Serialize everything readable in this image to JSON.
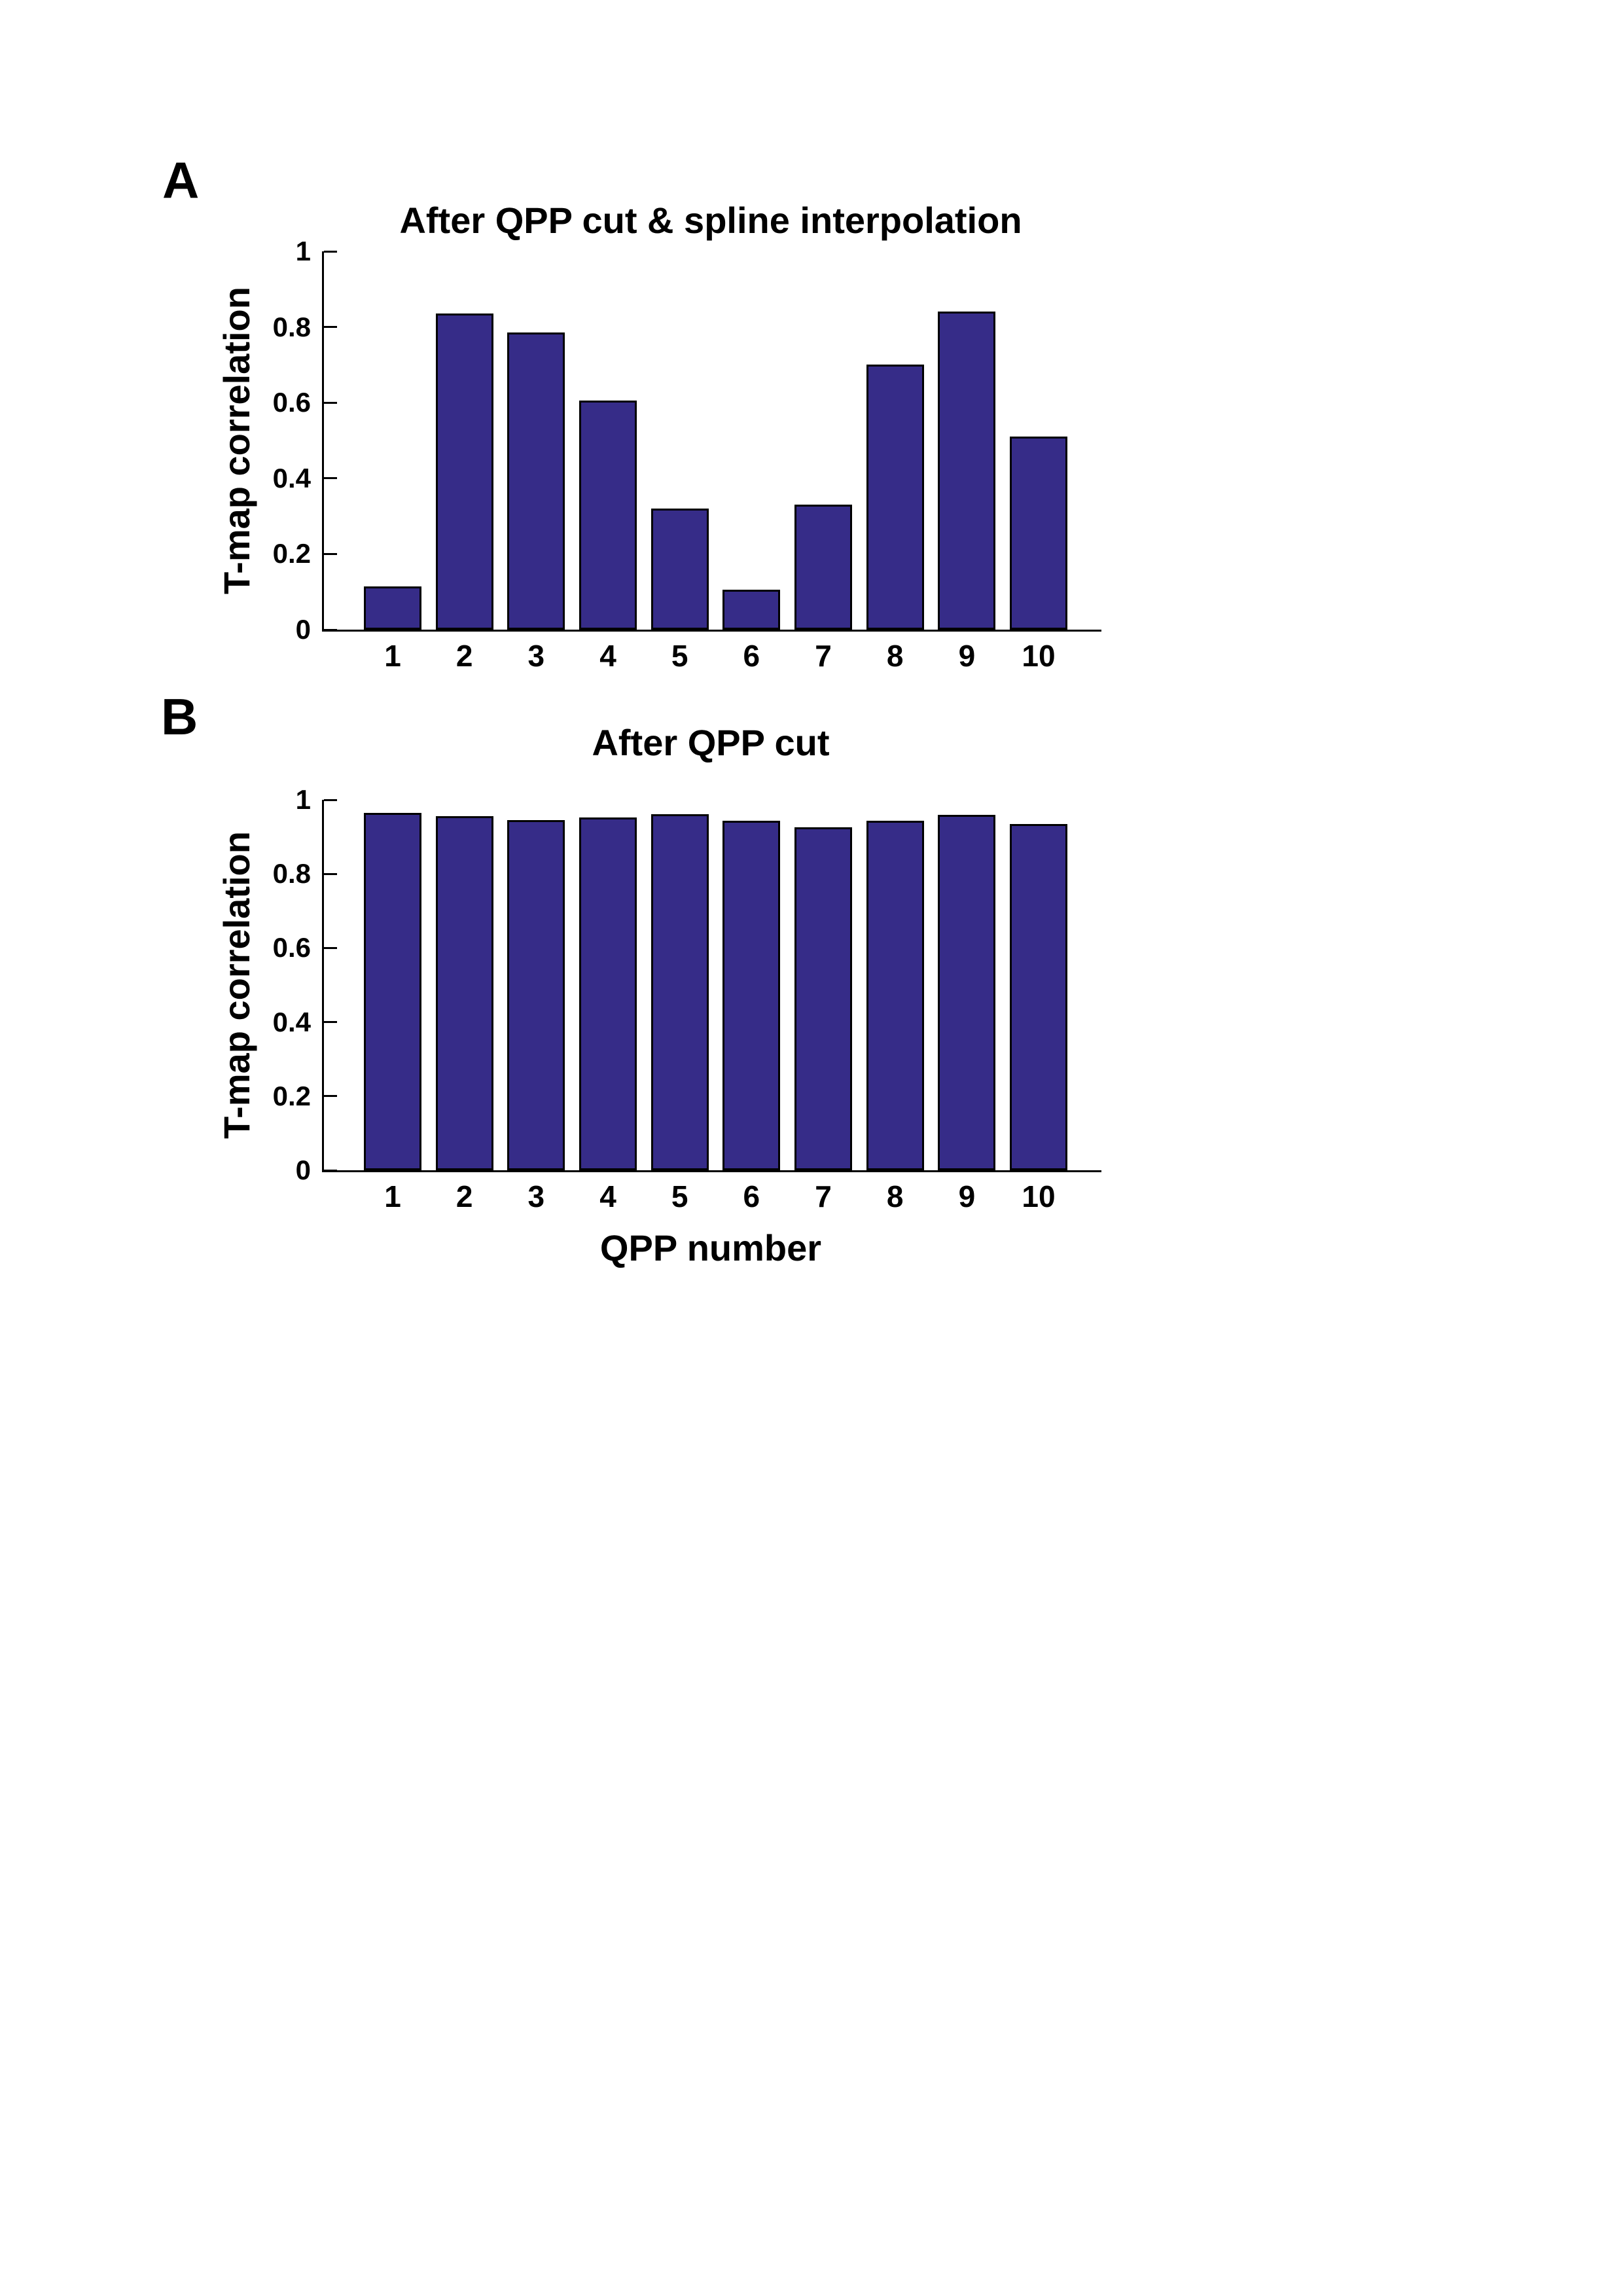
{
  "figure": {
    "background_color": "#ffffff",
    "text_color": "#000000"
  },
  "panels": [
    {
      "label": "A",
      "chart_index": 0
    },
    {
      "label": "B",
      "chart_index": 1
    }
  ],
  "chart_data": [
    {
      "type": "bar",
      "title": "After QPP cut & spline interpolation",
      "ylabel": "T-map correlation",
      "xlabel": "",
      "categories": [
        "1",
        "2",
        "3",
        "4",
        "5",
        "6",
        "7",
        "8",
        "9",
        "10"
      ],
      "values": [
        0.115,
        0.835,
        0.785,
        0.605,
        0.32,
        0.105,
        0.33,
        0.7,
        0.84,
        0.51
      ],
      "ylim": [
        0,
        1
      ],
      "yticks": [
        {
          "value": 0,
          "label": "0"
        },
        {
          "value": 0.2,
          "label": "0.2"
        },
        {
          "value": 0.4,
          "label": "0.4"
        },
        {
          "value": 0.6,
          "label": "0.6"
        },
        {
          "value": 0.8,
          "label": "0.8"
        },
        {
          "value": 1,
          "label": "1"
        }
      ],
      "grid": false,
      "legend_position": "none",
      "bar_color": "#362C88",
      "bar_edge_color": "#000000",
      "axis_color": "#000000"
    },
    {
      "type": "bar",
      "title": "After QPP cut",
      "ylabel": "T-map correlation",
      "xlabel": "QPP number",
      "categories": [
        "1",
        "2",
        "3",
        "4",
        "5",
        "6",
        "7",
        "8",
        "9",
        "10"
      ],
      "values": [
        0.965,
        0.955,
        0.945,
        0.953,
        0.961,
        0.944,
        0.926,
        0.944,
        0.96,
        0.935
      ],
      "ylim": [
        0,
        1
      ],
      "yticks": [
        {
          "value": 0,
          "label": "0"
        },
        {
          "value": 0.2,
          "label": "0.2"
        },
        {
          "value": 0.4,
          "label": "0.4"
        },
        {
          "value": 0.6,
          "label": "0.6"
        },
        {
          "value": 0.8,
          "label": "0.8"
        },
        {
          "value": 1,
          "label": "1"
        }
      ],
      "grid": false,
      "legend_position": "none",
      "bar_color": "#362C88",
      "bar_edge_color": "#000000",
      "axis_color": "#000000"
    }
  ]
}
